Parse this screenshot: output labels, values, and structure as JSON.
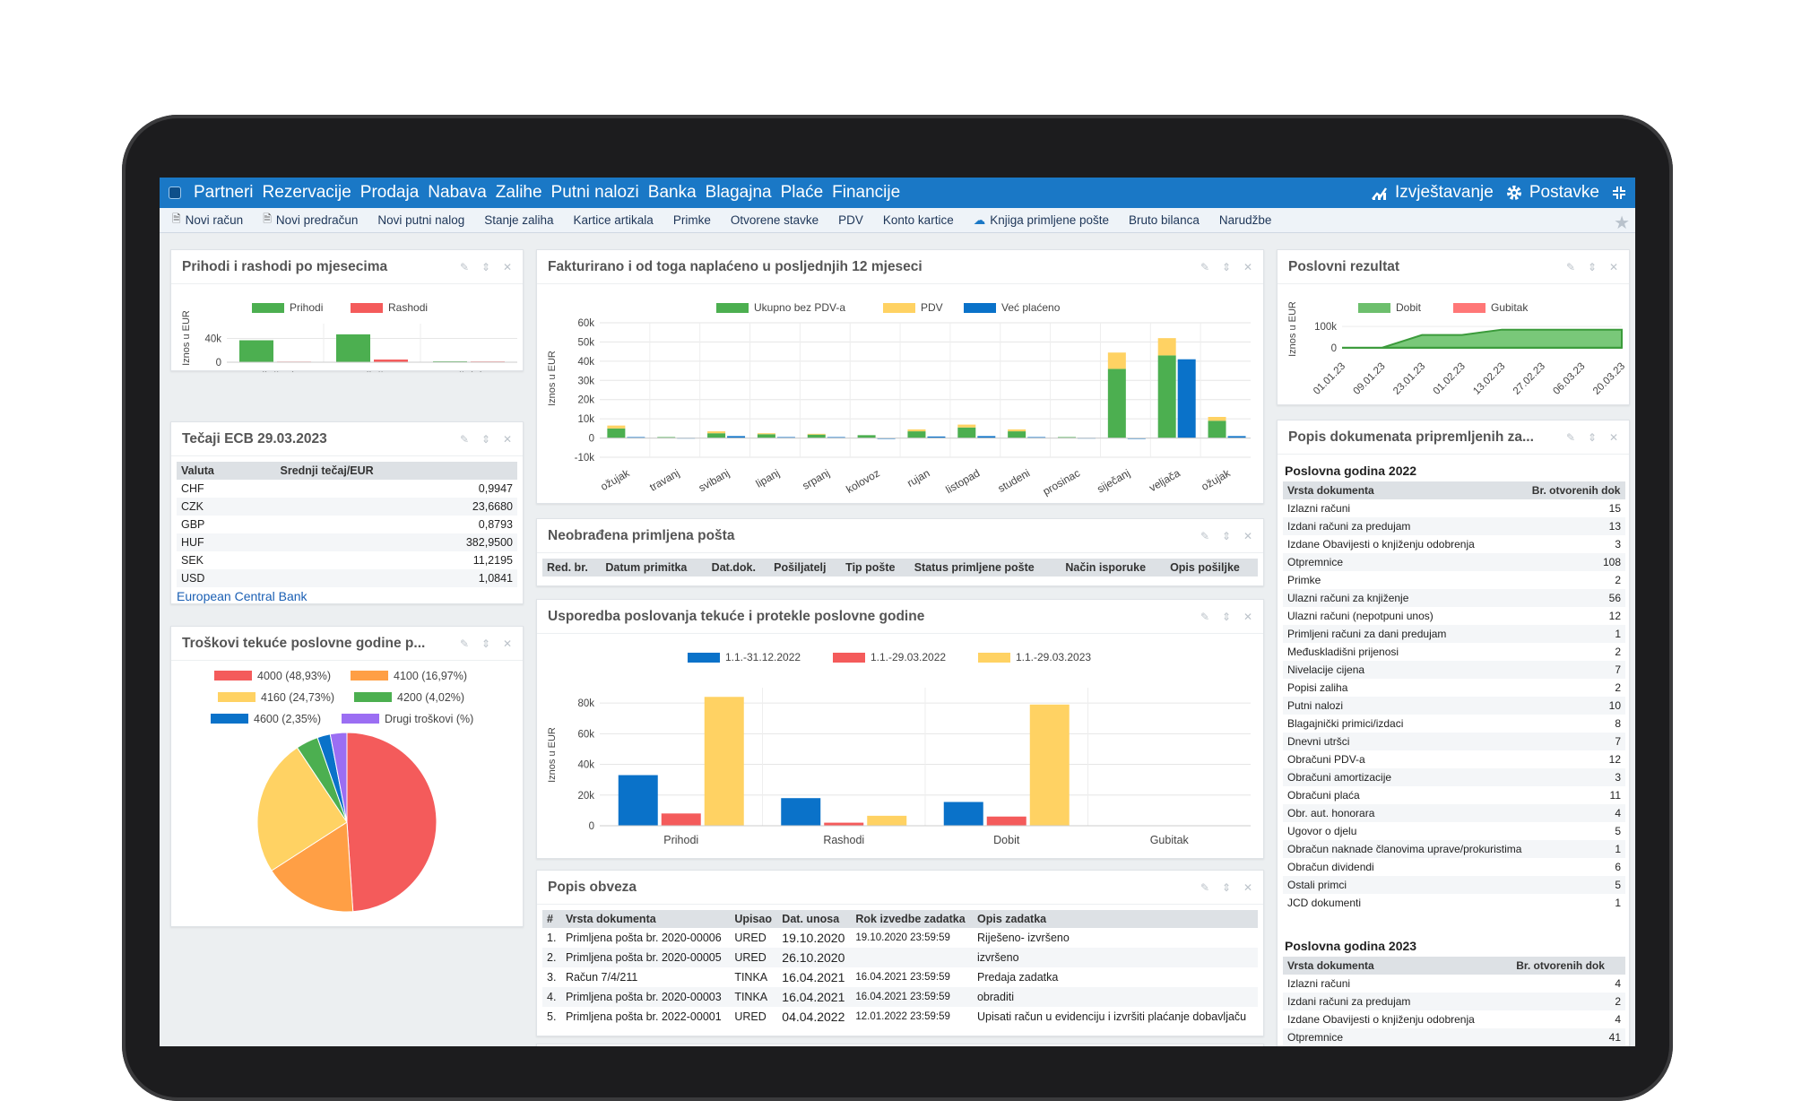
{
  "nav": {
    "items": [
      "Partneri",
      "Rezervacije",
      "Prodaja",
      "Nabava",
      "Zalihe",
      "Putni nalozi",
      "Banka",
      "Blagajna",
      "Plaće",
      "Financije"
    ],
    "reports": "Izvještavanje",
    "settings": "Postavke"
  },
  "subnav": {
    "items": [
      "Novi račun",
      "Novi predračun",
      "Novi putni nalog",
      "Stanje zaliha",
      "Kartice artikala",
      "Primke",
      "Otvorene stavke",
      "PDV",
      "Konto kartice",
      "Knjiga primljene pošte",
      "Bruto bilanca",
      "Narudžbe"
    ]
  },
  "colors": {
    "green": "#4caf50",
    "red": "#f45b5b",
    "yellow": "#ffd263",
    "blue": "#0a72c9",
    "orange": "#ff9f45",
    "purple": "#9b6ef3"
  },
  "cards": {
    "income": {
      "title": "Prihodi i rashodi po mjesecima"
    },
    "invoiced": {
      "title": "Fakturirano i od toga naplaćeno u posljednjih 12 mjeseci"
    },
    "result": {
      "title": "Poslovni rezultat"
    },
    "rates": {
      "title": "Tečaji ECB 29.03.2023",
      "col_currency": "Valuta",
      "col_rate": "Srednji tečaj/EUR",
      "rows": [
        [
          "CHF",
          "0,9947"
        ],
        [
          "CZK",
          "23,6680"
        ],
        [
          "GBP",
          "0,8793"
        ],
        [
          "HUF",
          "382,9500"
        ],
        [
          "SEK",
          "11,2195"
        ],
        [
          "USD",
          "1,0841"
        ]
      ],
      "source": "European Central Bank"
    },
    "mail": {
      "title": "Neobrađena primljena pošta",
      "cols": [
        "Red. br.",
        "Datum primitka",
        "Dat.dok.",
        "Pošiljatelj",
        "Tip pošte",
        "Status primljene pošte",
        "Način isporuke",
        "Opis pošiljke"
      ]
    },
    "costs": {
      "title": "Troškovi tekuće poslovne godine p..."
    },
    "compare": {
      "title": "Usporedba poslovanja tekuće i protekle poslovne godine"
    },
    "docs": {
      "title": "Popis dokumenata pripremljenih za...",
      "year1": "Poslovna godina 2022",
      "year2": "Poslovna godina 2023",
      "col_type": "Vrsta dokumenta",
      "col_open": "Br. otvorenih dok",
      "rows2022": [
        [
          "Izlazni računi",
          "15"
        ],
        [
          "Izdani računi za predujam",
          "13"
        ],
        [
          "Izdane Obavijesti o knjiženju odobrenja",
          "3"
        ],
        [
          "Otpremnice",
          "108"
        ],
        [
          "Primke",
          "2"
        ],
        [
          "Ulazni računi za knjiženje",
          "56"
        ],
        [
          "Ulazni računi (nepotpuni unos)",
          "12"
        ],
        [
          "Primljeni računi za dani predujam",
          "1"
        ],
        [
          "Međuskladišni prijenosi",
          "2"
        ],
        [
          "Nivelacije cijena",
          "7"
        ],
        [
          "Popisi zaliha",
          "2"
        ],
        [
          "Putni nalozi",
          "10"
        ],
        [
          "Blagajnički primici/izdaci",
          "8"
        ],
        [
          "Dnevni utršci",
          "7"
        ],
        [
          "Obračuni PDV-a",
          "12"
        ],
        [
          "Obračuni amortizacije",
          "3"
        ],
        [
          "Obračuni plaća",
          "11"
        ],
        [
          "Obr. aut. honorara",
          "4"
        ],
        [
          "Ugovor o djelu",
          "5"
        ],
        [
          "Obračun naknade članovima uprave/prokuristima",
          "1"
        ],
        [
          "Obračun dividendi",
          "6"
        ],
        [
          "Ostali primci",
          "5"
        ],
        [
          "JCD dokumenti",
          "1"
        ]
      ],
      "rows2023": [
        [
          "Izlazni računi",
          "4"
        ],
        [
          "Izdani računi za predujam",
          "2"
        ],
        [
          "Izdane Obavijesti o knjiženju odobrenja",
          "4"
        ],
        [
          "Otpremnice",
          "41"
        ]
      ]
    },
    "tasks": {
      "title": "Popis obveza",
      "cols": [
        "#",
        "Vrsta dokumenta",
        "Upisao",
        "Dat. unosa",
        "Rok izvedbe zadatka",
        "Opis zadatka"
      ],
      "rows": [
        [
          "1.",
          "Primljena pošta br. 2020-00006",
          "URED",
          "19.10.2020",
          "19.10.2020 23:59:59",
          "Riješeno- izvršeno"
        ],
        [
          "2.",
          "Primljena pošta br. 2020-00005",
          "URED",
          "26.10.2020",
          "",
          "izvršeno"
        ],
        [
          "3.",
          "Račun 7/4/211",
          "TINKA",
          "16.04.2021",
          "16.04.2021 23:59:59",
          "Predaja zadatka"
        ],
        [
          "4.",
          "Primljena pošta br. 2020-00003",
          "TINKA",
          "16.04.2021",
          "16.04.2021 23:59:59",
          "obraditi"
        ],
        [
          "5.",
          "Primljena pošta br. 2022-00001",
          "URED",
          "04.04.2022",
          "12.01.2022 23:59:59",
          "Upisati račun u evidenciju i izvršiti plaćanje dobavljaču"
        ]
      ]
    }
  },
  "chart_data": [
    {
      "id": "income",
      "type": "bar",
      "title": "Prihodi i rashodi po mjesecima",
      "ylabel": "Iznos u EUR",
      "categories": [
        "siječanj",
        "veljača",
        "ožujak"
      ],
      "yticks": [
        "0",
        "40k"
      ],
      "ylim": [
        0,
        65000
      ],
      "series": [
        {
          "name": "Prihodi",
          "values": [
            37000,
            47000,
            1500
          ]
        },
        {
          "name": "Rashodi",
          "values": [
            1000,
            4500,
            1200
          ]
        }
      ]
    },
    {
      "id": "invoiced",
      "type": "bar",
      "title": "Fakturirano i od toga naplaćeno u posljednjih 12 mjeseci",
      "ylabel": "Iznos u EUR",
      "categories": [
        "ožujak",
        "travanj",
        "svibanj",
        "lipanj",
        "srpanj",
        "kolovoz",
        "rujan",
        "listopad",
        "studeni",
        "prosinac",
        "siječanj",
        "veljača",
        "ožujak"
      ],
      "yticks": [
        "-10k",
        "0",
        "10k",
        "20k",
        "30k",
        "40k",
        "50k",
        "60k"
      ],
      "ylim": [
        -10000,
        60000
      ],
      "series": [
        {
          "name": "Ukupno bez PDV-a",
          "values": [
            5000,
            500,
            2500,
            2000,
            1800,
            1500,
            3500,
            5500,
            3500,
            500,
            36000,
            43000,
            9000
          ]
        },
        {
          "name": "PDV",
          "values": [
            1500,
            0,
            1000,
            500,
            400,
            0,
            1000,
            1500,
            1000,
            0,
            8500,
            9000,
            2000
          ]
        },
        {
          "name": "Već plaćeno",
          "values": [
            500,
            200,
            1000,
            500,
            500,
            0,
            800,
            1000,
            500,
            200,
            0,
            41000,
            1000
          ]
        }
      ]
    },
    {
      "id": "result",
      "type": "area",
      "title": "Poslovni rezultat",
      "ylabel": "Iznos u EUR",
      "x": [
        "01.01.23",
        "09.01.23",
        "23.01.23",
        "01.02.23",
        "13.02.23",
        "27.02.23",
        "06.03.23",
        "20.03.23"
      ],
      "yticks": [
        "0",
        "100k"
      ],
      "ylim": [
        -30000,
        130000
      ],
      "series": [
        {
          "name": "Dobit",
          "values": [
            0,
            0,
            60000,
            60000,
            85000,
            85000,
            85000,
            85000
          ]
        },
        {
          "name": "Gubitak",
          "values": [
            0,
            0,
            0,
            0,
            0,
            0,
            0,
            0
          ]
        }
      ]
    },
    {
      "id": "costs",
      "type": "pie",
      "title": "Troškovi tekuće poslovne godine",
      "labels": [
        "4000 (48,93%)",
        "4100 (16,97%)",
        "4160 (24,73%)",
        "4200 (4,02%)",
        "4600 (2,35%)",
        "Drugi troškovi (%)"
      ],
      "values": [
        48.93,
        16.97,
        24.73,
        4.02,
        2.35,
        3.0
      ]
    },
    {
      "id": "compare",
      "type": "bar",
      "title": "Usporedba poslovanja tekuće i protekle poslovne godine",
      "ylabel": "Iznos u EUR",
      "categories": [
        "Prihodi",
        "Rashodi",
        "Dobit",
        "Gubitak"
      ],
      "yticks": [
        "0",
        "20k",
        "40k",
        "60k",
        "80k"
      ],
      "ylim": [
        0,
        90000
      ],
      "series": [
        {
          "name": "1.1.-31.12.2022",
          "values": [
            33000,
            18000,
            15500,
            0
          ]
        },
        {
          "name": "1.1.-29.03.2022",
          "values": [
            8000,
            2000,
            6000,
            0
          ]
        },
        {
          "name": "1.1.-29.03.2023",
          "values": [
            84000,
            6500,
            79000,
            0
          ]
        }
      ]
    }
  ]
}
